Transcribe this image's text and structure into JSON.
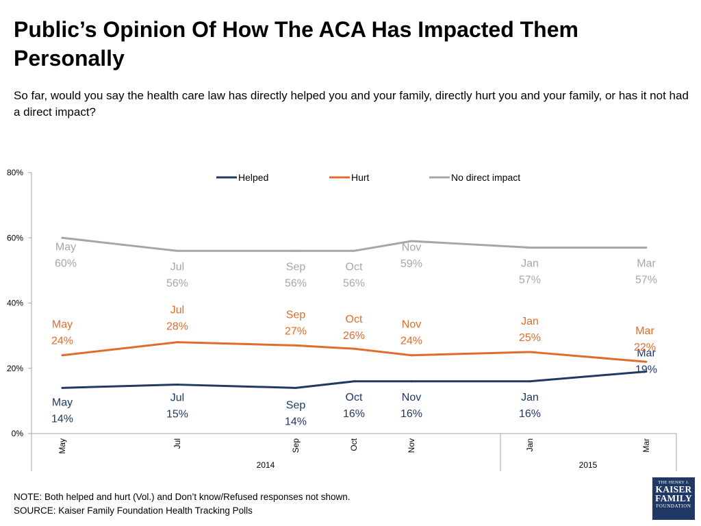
{
  "title": "Public’s Opinion Of How The ACA Has Impacted Them Personally",
  "subtitle": "So far, would you say the health care law has directly helped you and your family, directly hurt you and your family, or has it not had a direct impact?",
  "note": "NOTE: Both helped and hurt (Vol.) and Don’t know/Refused responses not shown.",
  "source": "SOURCE: Kaiser Family Foundation Health Tracking Polls",
  "logo": {
    "line1": "THE HENRY J.",
    "line2": "KAISER",
    "line3": "FAMILY",
    "line4": "FOUNDATION"
  },
  "chart_data": {
    "type": "line",
    "x": [
      "May",
      "Jul",
      "Sep",
      "Oct",
      "Nov",
      "Jan",
      "Mar"
    ],
    "year_groups": [
      {
        "label": "2014",
        "span": [
          "May",
          "Nov"
        ]
      },
      {
        "label": "2015",
        "span": [
          "Jan",
          "Mar"
        ]
      }
    ],
    "ylim": [
      0,
      80
    ],
    "yticks": [
      "0%",
      "20%",
      "40%",
      "60%",
      "80%"
    ],
    "legend_position": "top",
    "series": [
      {
        "name": "Helped",
        "color": "#1f3864",
        "values": [
          14,
          15,
          14,
          16,
          16,
          16,
          19
        ],
        "labels": [
          "14%",
          "15%",
          "14%",
          "16%",
          "16%",
          "16%",
          "19%"
        ]
      },
      {
        "name": "Hurt",
        "color": "#e06c2c",
        "values": [
          24,
          28,
          27,
          26,
          24,
          25,
          22
        ],
        "labels": [
          "24%",
          "28%",
          "27%",
          "26%",
          "24%",
          "25%",
          "22%"
        ]
      },
      {
        "name": "No direct impact",
        "color": "#a6a6a6",
        "values": [
          60,
          56,
          56,
          56,
          59,
          57,
          57
        ],
        "labels": [
          "60%",
          "56%",
          "56%",
          "56%",
          "59%",
          "57%",
          "57%"
        ]
      }
    ]
  }
}
